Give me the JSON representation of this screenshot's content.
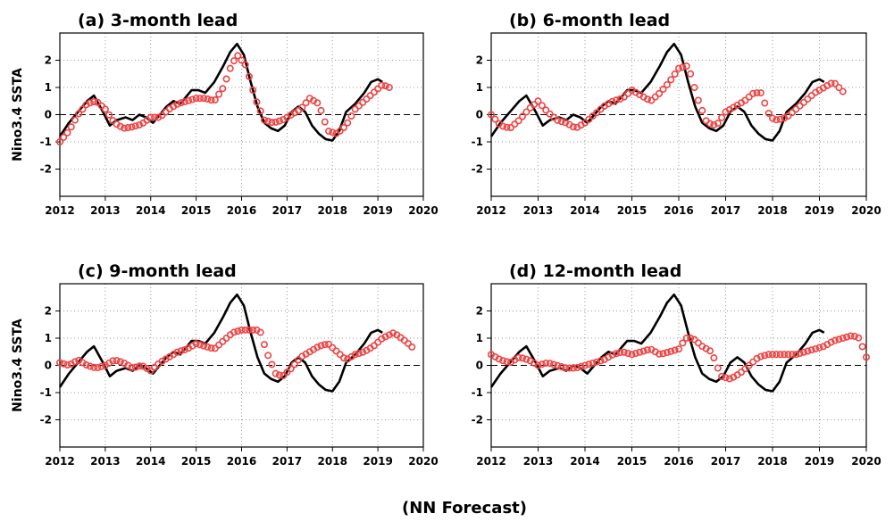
{
  "figure": {
    "bottom_label": "(NN Forecast)"
  },
  "colors": {
    "observed": "#000000",
    "forecast": "#ee4444",
    "grid": "#9a9a9a"
  },
  "chart_data": [
    {
      "type": "line",
      "title": "(a) 3-month lead",
      "ylabel": "Nino3.4 SSTA",
      "xlim": [
        2012,
        2020
      ],
      "ylim": [
        -3,
        3
      ],
      "xticks": [
        2012,
        2013,
        2014,
        2015,
        2016,
        2017,
        2018,
        2019,
        2020
      ],
      "yticks": [
        -2,
        -1,
        0,
        1,
        2
      ],
      "grid": true,
      "series": [
        {
          "role": "observed",
          "style": "solid-line",
          "x": [
            2012.0,
            2012.2,
            2012.4,
            2012.6,
            2012.75,
            2012.95,
            2013.1,
            2013.25,
            2013.45,
            2013.6,
            2013.75,
            2013.9,
            2014.05,
            2014.2,
            2014.35,
            2014.5,
            2014.65,
            2014.8,
            2014.9,
            2015.05,
            2015.2,
            2015.4,
            2015.6,
            2015.75,
            2015.9,
            2016.05,
            2016.2,
            2016.35,
            2016.5,
            2016.65,
            2016.8,
            2016.95,
            2017.1,
            2017.25,
            2017.4,
            2017.55,
            2017.7,
            2017.85,
            2018.0,
            2018.15,
            2018.3,
            2018.5,
            2018.7,
            2018.85,
            2019.0,
            2019.1
          ],
          "y": [
            -0.8,
            -0.3,
            0.1,
            0.5,
            0.7,
            0.1,
            -0.4,
            -0.2,
            -0.1,
            -0.2,
            0.0,
            -0.1,
            -0.3,
            0.0,
            0.3,
            0.5,
            0.4,
            0.7,
            0.9,
            0.9,
            0.8,
            1.2,
            1.8,
            2.3,
            2.6,
            2.2,
            1.2,
            0.3,
            -0.3,
            -0.5,
            -0.6,
            -0.4,
            0.1,
            0.3,
            0.1,
            -0.4,
            -0.7,
            -0.9,
            -0.95,
            -0.6,
            0.1,
            0.4,
            0.8,
            1.2,
            1.3,
            1.2
          ]
        },
        {
          "role": "forecast",
          "style": "open-circles",
          "x": [
            2012.0,
            2012.2,
            2012.4,
            2012.6,
            2012.8,
            2013.0,
            2013.2,
            2013.4,
            2013.6,
            2013.8,
            2014.0,
            2014.2,
            2014.4,
            2014.6,
            2014.8,
            2015.0,
            2015.2,
            2015.4,
            2015.6,
            2015.75,
            2015.9,
            2016.1,
            2016.3,
            2016.5,
            2016.7,
            2016.9,
            2017.1,
            2017.3,
            2017.5,
            2017.7,
            2017.9,
            2018.1,
            2018.3,
            2018.5,
            2018.7,
            2018.9,
            2019.1,
            2019.25
          ],
          "y": [
            -1.0,
            -0.6,
            0.0,
            0.4,
            0.5,
            0.2,
            -0.3,
            -0.5,
            -0.45,
            -0.35,
            -0.1,
            -0.1,
            0.2,
            0.4,
            0.5,
            0.6,
            0.6,
            0.5,
            1.0,
            1.7,
            2.2,
            1.8,
            0.6,
            -0.2,
            -0.3,
            -0.2,
            0.0,
            0.2,
            0.6,
            0.4,
            -0.6,
            -0.7,
            -0.4,
            0.2,
            0.5,
            0.8,
            1.1,
            1.0
          ]
        }
      ]
    },
    {
      "type": "line",
      "title": "(b) 6-month lead",
      "ylabel": "",
      "xlim": [
        2012,
        2020
      ],
      "ylim": [
        -3,
        3
      ],
      "xticks": [
        2012,
        2013,
        2014,
        2015,
        2016,
        2017,
        2018,
        2019,
        2020
      ],
      "yticks": [
        -2,
        -1,
        0,
        1,
        2
      ],
      "grid": true,
      "series": [
        {
          "role": "observed",
          "style": "solid-line",
          "x": [
            2012.0,
            2012.2,
            2012.4,
            2012.6,
            2012.75,
            2012.95,
            2013.1,
            2013.25,
            2013.45,
            2013.6,
            2013.75,
            2013.9,
            2014.05,
            2014.2,
            2014.35,
            2014.5,
            2014.65,
            2014.8,
            2014.9,
            2015.05,
            2015.2,
            2015.4,
            2015.6,
            2015.75,
            2015.9,
            2016.05,
            2016.2,
            2016.35,
            2016.5,
            2016.65,
            2016.8,
            2016.95,
            2017.1,
            2017.25,
            2017.4,
            2017.55,
            2017.7,
            2017.85,
            2018.0,
            2018.15,
            2018.3,
            2018.5,
            2018.7,
            2018.85,
            2019.0,
            2019.1
          ],
          "y": [
            -0.8,
            -0.3,
            0.1,
            0.5,
            0.7,
            0.1,
            -0.4,
            -0.2,
            -0.1,
            -0.2,
            0.0,
            -0.1,
            -0.3,
            0.0,
            0.3,
            0.5,
            0.4,
            0.7,
            0.9,
            0.9,
            0.8,
            1.2,
            1.8,
            2.3,
            2.6,
            2.2,
            1.2,
            0.3,
            -0.3,
            -0.5,
            -0.6,
            -0.4,
            0.1,
            0.3,
            0.1,
            -0.4,
            -0.7,
            -0.9,
            -0.95,
            -0.6,
            0.1,
            0.4,
            0.8,
            1.2,
            1.3,
            1.2
          ]
        },
        {
          "role": "forecast",
          "style": "open-circles",
          "x": [
            2012.0,
            2012.2,
            2012.4,
            2012.6,
            2012.8,
            2013.0,
            2013.2,
            2013.4,
            2013.6,
            2013.8,
            2014.0,
            2014.2,
            2014.4,
            2014.6,
            2014.8,
            2015.0,
            2015.2,
            2015.4,
            2015.6,
            2015.8,
            2016.0,
            2016.2,
            2016.4,
            2016.6,
            2016.8,
            2017.0,
            2017.2,
            2017.4,
            2017.6,
            2017.75,
            2017.95,
            2018.1,
            2018.3,
            2018.5,
            2018.7,
            2018.9,
            2019.1,
            2019.3,
            2019.5
          ],
          "y": [
            0.0,
            -0.4,
            -0.5,
            -0.2,
            0.2,
            0.5,
            0.1,
            -0.2,
            -0.3,
            -0.5,
            -0.3,
            0.0,
            0.3,
            0.5,
            0.6,
            0.9,
            0.7,
            0.5,
            0.8,
            1.2,
            1.7,
            1.8,
            0.6,
            -0.3,
            -0.4,
            0.1,
            0.3,
            0.5,
            0.8,
            0.8,
            -0.1,
            -0.2,
            -0.1,
            0.2,
            0.5,
            0.8,
            1.0,
            1.2,
            0.85
          ]
        }
      ]
    },
    {
      "type": "line",
      "title": "(c) 9-month lead",
      "ylabel": "Nino3.4 SSTA",
      "xlim": [
        2012,
        2020
      ],
      "ylim": [
        -3,
        3
      ],
      "xticks": [
        2012,
        2013,
        2014,
        2015,
        2016,
        2017,
        2018,
        2019,
        2020
      ],
      "yticks": [
        -2,
        -1,
        0,
        1,
        2
      ],
      "grid": true,
      "series": [
        {
          "role": "observed",
          "style": "solid-line",
          "x": [
            2012.0,
            2012.2,
            2012.4,
            2012.6,
            2012.75,
            2012.95,
            2013.1,
            2013.25,
            2013.45,
            2013.6,
            2013.75,
            2013.9,
            2014.05,
            2014.2,
            2014.35,
            2014.5,
            2014.65,
            2014.8,
            2014.9,
            2015.05,
            2015.2,
            2015.4,
            2015.6,
            2015.75,
            2015.9,
            2016.05,
            2016.2,
            2016.35,
            2016.5,
            2016.65,
            2016.8,
            2016.95,
            2017.1,
            2017.25,
            2017.4,
            2017.55,
            2017.7,
            2017.85,
            2018.0,
            2018.15,
            2018.3,
            2018.5,
            2018.7,
            2018.85,
            2019.0,
            2019.1
          ],
          "y": [
            -0.8,
            -0.3,
            0.1,
            0.5,
            0.7,
            0.1,
            -0.4,
            -0.2,
            -0.1,
            -0.2,
            0.0,
            -0.1,
            -0.3,
            0.0,
            0.3,
            0.5,
            0.4,
            0.7,
            0.9,
            0.9,
            0.8,
            1.2,
            1.8,
            2.3,
            2.6,
            2.2,
            1.2,
            0.3,
            -0.3,
            -0.5,
            -0.6,
            -0.4,
            0.1,
            0.3,
            0.1,
            -0.4,
            -0.7,
            -0.9,
            -0.95,
            -0.6,
            0.1,
            0.4,
            0.8,
            1.2,
            1.3,
            1.2
          ]
        },
        {
          "role": "forecast",
          "style": "open-circles",
          "x": [
            2012.0,
            2012.2,
            2012.4,
            2012.6,
            2012.8,
            2013.0,
            2013.2,
            2013.4,
            2013.6,
            2013.8,
            2014.0,
            2014.2,
            2014.4,
            2014.6,
            2014.8,
            2015.0,
            2015.2,
            2015.4,
            2015.6,
            2015.8,
            2016.0,
            2016.2,
            2016.4,
            2016.55,
            2016.75,
            2016.9,
            2017.1,
            2017.3,
            2017.5,
            2017.7,
            2017.9,
            2018.1,
            2018.3,
            2018.5,
            2018.7,
            2018.9,
            2019.1,
            2019.35,
            2019.6,
            2019.8
          ],
          "y": [
            0.1,
            0.0,
            0.2,
            0.0,
            -0.1,
            0.0,
            0.2,
            0.1,
            -0.1,
            0.0,
            -0.2,
            0.1,
            0.3,
            0.5,
            0.6,
            0.8,
            0.7,
            0.6,
            0.9,
            1.2,
            1.3,
            1.3,
            1.3,
            0.5,
            -0.3,
            -0.4,
            -0.1,
            0.3,
            0.5,
            0.7,
            0.8,
            0.5,
            0.2,
            0.4,
            0.5,
            0.7,
            1.0,
            1.2,
            0.9,
            0.6
          ]
        }
      ]
    },
    {
      "type": "line",
      "title": "(d) 12-month lead",
      "ylabel": "",
      "xlim": [
        2012,
        2020
      ],
      "ylim": [
        -3,
        3
      ],
      "xticks": [
        2012,
        2013,
        2014,
        2015,
        2016,
        2017,
        2018,
        2019,
        2020
      ],
      "yticks": [
        -2,
        -1,
        0,
        1,
        2
      ],
      "grid": true,
      "series": [
        {
          "role": "observed",
          "style": "solid-line",
          "x": [
            2012.0,
            2012.2,
            2012.4,
            2012.6,
            2012.75,
            2012.95,
            2013.1,
            2013.25,
            2013.45,
            2013.6,
            2013.75,
            2013.9,
            2014.05,
            2014.2,
            2014.35,
            2014.5,
            2014.65,
            2014.8,
            2014.9,
            2015.05,
            2015.2,
            2015.4,
            2015.6,
            2015.75,
            2015.9,
            2016.05,
            2016.2,
            2016.35,
            2016.5,
            2016.65,
            2016.8,
            2016.95,
            2017.1,
            2017.25,
            2017.4,
            2017.55,
            2017.7,
            2017.85,
            2018.0,
            2018.15,
            2018.3,
            2018.5,
            2018.7,
            2018.85,
            2019.0,
            2019.1
          ],
          "y": [
            -0.8,
            -0.3,
            0.1,
            0.5,
            0.7,
            0.1,
            -0.4,
            -0.2,
            -0.1,
            -0.2,
            0.0,
            -0.1,
            -0.3,
            0.0,
            0.3,
            0.5,
            0.4,
            0.7,
            0.9,
            0.9,
            0.8,
            1.2,
            1.8,
            2.3,
            2.6,
            2.2,
            1.2,
            0.3,
            -0.3,
            -0.5,
            -0.6,
            -0.4,
            0.1,
            0.3,
            0.1,
            -0.4,
            -0.7,
            -0.9,
            -0.95,
            -0.6,
            0.1,
            0.4,
            0.8,
            1.2,
            1.3,
            1.2
          ]
        },
        {
          "role": "forecast",
          "style": "open-circles",
          "x": [
            2012.0,
            2012.2,
            2012.4,
            2012.6,
            2012.8,
            2013.0,
            2013.2,
            2013.4,
            2013.6,
            2013.8,
            2014.0,
            2014.2,
            2014.4,
            2014.6,
            2014.8,
            2015.0,
            2015.2,
            2015.4,
            2015.6,
            2015.8,
            2016.0,
            2016.15,
            2016.3,
            2016.5,
            2016.7,
            2016.9,
            2017.1,
            2017.3,
            2017.5,
            2017.7,
            2017.9,
            2018.1,
            2018.3,
            2018.5,
            2018.7,
            2018.9,
            2019.1,
            2019.3,
            2019.5,
            2019.7,
            2019.85,
            2020.0
          ],
          "y": [
            0.4,
            0.2,
            0.1,
            0.3,
            0.2,
            0.0,
            0.1,
            0.0,
            -0.1,
            -0.1,
            0.0,
            0.1,
            0.2,
            0.4,
            0.5,
            0.4,
            0.5,
            0.6,
            0.4,
            0.5,
            0.6,
            1.0,
            1.0,
            0.7,
            0.5,
            -0.4,
            -0.5,
            -0.3,
            0.0,
            0.3,
            0.4,
            0.4,
            0.4,
            0.4,
            0.5,
            0.6,
            0.7,
            0.9,
            1.0,
            1.1,
            1.0,
            0.3
          ]
        }
      ]
    }
  ]
}
